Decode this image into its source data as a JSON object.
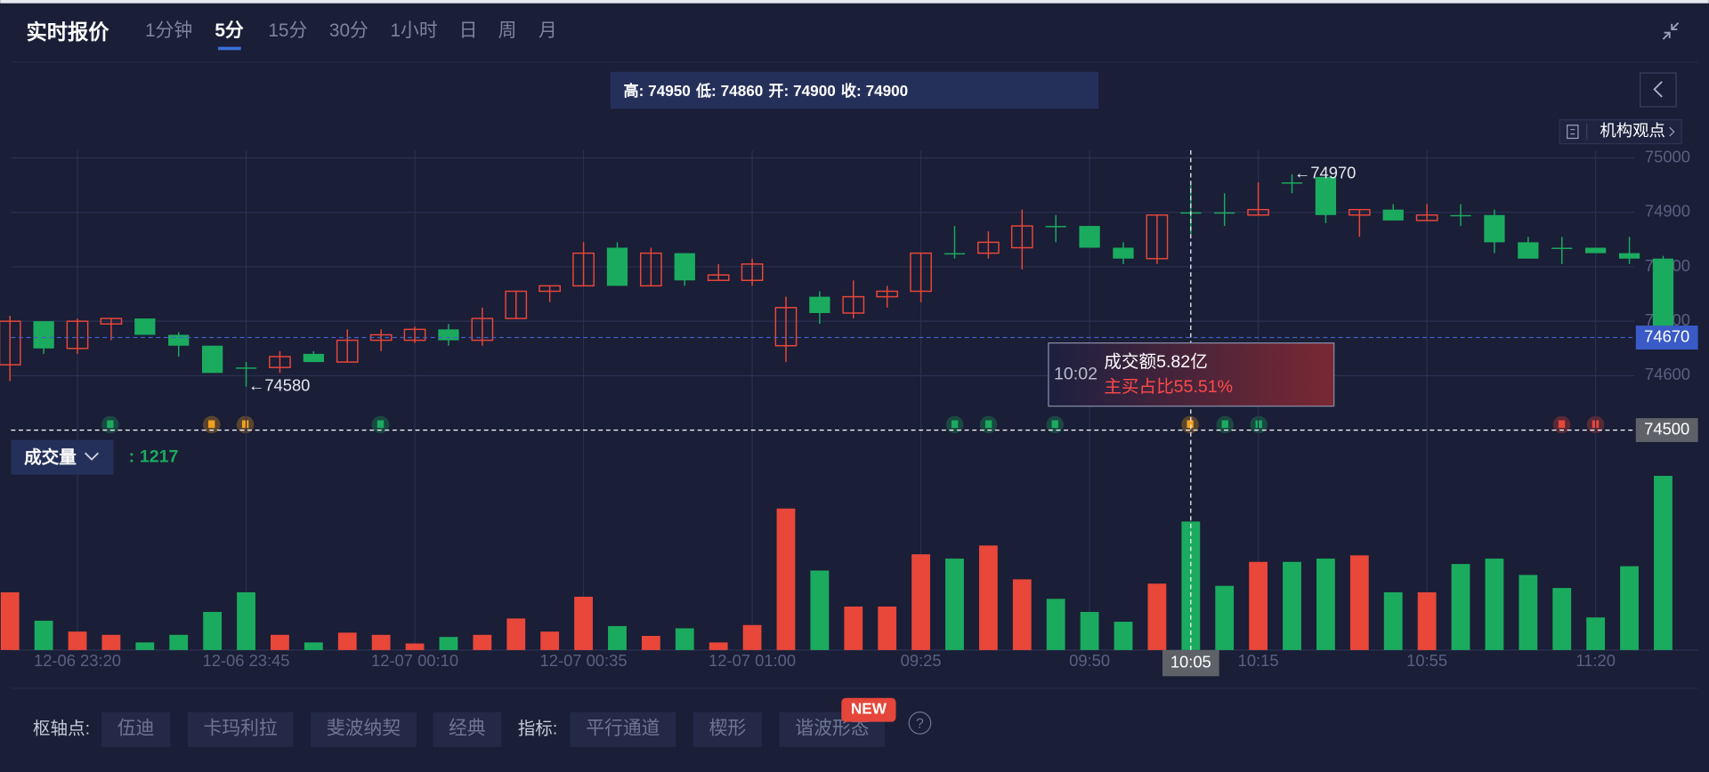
{
  "header": {
    "title": "实时报价",
    "tabs": [
      "1分钟",
      "5分",
      "15分",
      "30分",
      "1小时",
      "日",
      "周",
      "月"
    ]
  },
  "ohlc_info": [
    {
      "label": "高:",
      "value": 74950
    },
    {
      "label": "低:",
      "value": 74860
    },
    {
      "label": "开:",
      "value": 74900
    },
    {
      "label": "收:",
      "value": 74900
    }
  ],
  "institution_button": {
    "label": "机构观点"
  },
  "chart_data": {
    "type": "candlestick",
    "categories": [
      null,
      null,
      "12-06 23:20",
      null,
      null,
      null,
      null,
      "12-06 23:45",
      null,
      null,
      null,
      null,
      "12-07 00:10",
      null,
      null,
      null,
      null,
      "12-07 00:35",
      null,
      null,
      null,
      null,
      "12-07 01:00",
      null,
      null,
      null,
      null,
      "09:25",
      null,
      null,
      null,
      null,
      "09:50",
      null,
      null,
      "10:05",
      null,
      "10:15",
      null,
      null,
      null,
      null,
      "10:55",
      null,
      null,
      null,
      null,
      "11:20",
      null,
      null
    ],
    "open": [
      74620,
      74700,
      74650,
      74695,
      74705,
      74675,
      74655,
      74615,
      74615,
      74640,
      74625,
      74665,
      74665,
      74685,
      74665,
      74705,
      74755,
      74765,
      74835,
      74765,
      74825,
      74775,
      74775,
      74655,
      74745,
      74715,
      74745,
      74755,
      74825,
      74825,
      74835,
      74875,
      74875,
      74835,
      74815,
      74900,
      74900,
      74895,
      74955,
      74965,
      74895,
      74905,
      74885,
      74895,
      74895,
      74845,
      74835,
      74835,
      74825,
      74815
    ],
    "high": [
      74710,
      74700,
      74705,
      74705,
      74705,
      74680,
      74655,
      74625,
      74645,
      74645,
      74685,
      74685,
      74690,
      74695,
      74725,
      74755,
      74765,
      74845,
      74845,
      74835,
      74825,
      74805,
      74815,
      74745,
      74755,
      74775,
      74765,
      74825,
      74875,
      74865,
      74905,
      74895,
      74875,
      74845,
      74895,
      74950,
      74935,
      74955,
      74970,
      74970,
      74905,
      74915,
      74915,
      74915,
      74905,
      74855,
      74855,
      74835,
      74855,
      74820
    ],
    "low": [
      74590,
      74640,
      74640,
      74665,
      74675,
      74635,
      74605,
      74580,
      74605,
      74625,
      74625,
      74645,
      74660,
      74655,
      74655,
      74705,
      74735,
      74765,
      74765,
      74765,
      74765,
      74775,
      74765,
      74625,
      74695,
      74705,
      74725,
      74735,
      74815,
      74815,
      74795,
      74845,
      74835,
      74805,
      74805,
      74860,
      74875,
      74895,
      74935,
      74880,
      74855,
      74885,
      74885,
      74875,
      74825,
      74815,
      74805,
      74825,
      74805,
      74670
    ],
    "close": [
      74700,
      74650,
      74700,
      74705,
      74675,
      74655,
      74605,
      74615,
      74635,
      74625,
      74665,
      74675,
      74685,
      74665,
      74705,
      74755,
      74765,
      74825,
      74765,
      74825,
      74775,
      74785,
      74805,
      74725,
      74715,
      74745,
      74755,
      74825,
      74825,
      74845,
      74875,
      74875,
      74835,
      74815,
      74895,
      74900,
      74900,
      74905,
      74955,
      74895,
      74905,
      74885,
      74895,
      74895,
      74845,
      74815,
      74835,
      74825,
      74815,
      74670
    ],
    "volume": [
      547,
      278,
      175,
      144,
      72,
      144,
      361,
      547,
      144,
      72,
      165,
      144,
      62,
      124,
      144,
      299,
      175,
      505,
      227,
      134,
      206,
      72,
      237,
      1340,
      753,
      412,
      412,
      907,
      866,
      990,
      670,
      485,
      361,
      268,
      629,
      1217,
      608,
      835,
      835,
      866,
      897,
      547,
      547,
      815,
      866,
      711,
      588,
      309,
      794,
      1650
    ],
    "up_color": "#e8473a",
    "down_color": "#1bab5f",
    "ylim": [
      74500,
      75000
    ],
    "yticks": [
      74600,
      74700,
      74800,
      74900,
      75000
    ],
    "grid": true,
    "last_price": 74670,
    "crosshair_price": 74500,
    "annotations": [
      {
        "value": 74580,
        "label": "←74580"
      },
      {
        "value": 74970,
        "label": "←74970"
      }
    ],
    "tooltip": {
      "time": "10:02",
      "turnover": "成交额5.82亿",
      "buy_ratio": "主买占比55.51%"
    }
  },
  "volume_panel": {
    "title": "成交量",
    "separator": ":"
  },
  "toolbar": {
    "pivot_label": "枢轴点:",
    "pivots": [
      "伍迪",
      "卡玛利拉",
      "斐波纳契",
      "经典"
    ],
    "indicator_label": "指标:",
    "indicators": [
      "平行通道",
      "楔形",
      "谐波形态"
    ],
    "badge": "NEW",
    "help": "?"
  }
}
